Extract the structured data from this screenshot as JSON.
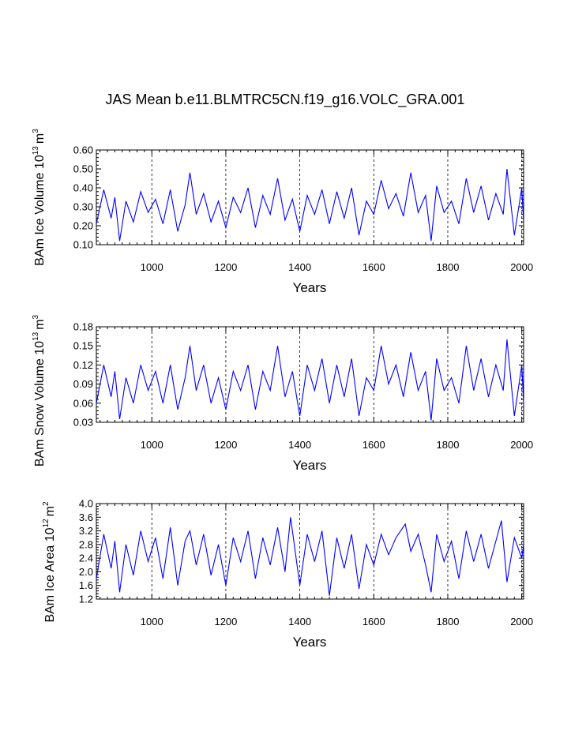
{
  "title": "JAS Mean b.e11.BLMTRC5CN.f19_g16.VOLC_GRA.001",
  "chart_data": [
    {
      "type": "line",
      "ylabel": "BAm Ice Volume 10",
      "ylabel_exp": "13",
      "ylabel_unit": "m",
      "ylabel_unit_exp": "3",
      "xlabel": "Years",
      "xlim": [
        850,
        2005
      ],
      "ylim": [
        0.1,
        0.6
      ],
      "xticks": [
        1000,
        1200,
        1400,
        1600,
        1800,
        2000
      ],
      "xtick_labels": [
        "1000",
        "1200",
        "1400",
        "1600",
        "1800",
        "2000"
      ],
      "yticks": [
        0.1,
        0.2,
        0.3,
        0.4,
        0.5,
        0.6
      ],
      "ytick_labels": [
        "0.10",
        "0.20",
        "0.30",
        "0.40",
        "0.50",
        "0.60"
      ],
      "grid": "dashed vertical at major x ticks",
      "series": [
        {
          "color": "#0000ff",
          "x": [
            850,
            870,
            890,
            900,
            913,
            930,
            950,
            970,
            990,
            1010,
            1030,
            1050,
            1070,
            1090,
            1103,
            1120,
            1140,
            1160,
            1180,
            1200,
            1220,
            1240,
            1260,
            1280,
            1300,
            1320,
            1340,
            1360,
            1380,
            1400,
            1420,
            1440,
            1460,
            1480,
            1500,
            1520,
            1540,
            1560,
            1580,
            1600,
            1620,
            1640,
            1660,
            1680,
            1700,
            1720,
            1740,
            1755,
            1770,
            1790,
            1810,
            1830,
            1850,
            1870,
            1890,
            1910,
            1930,
            1950,
            1960,
            1980,
            2000,
            2005
          ],
          "y": [
            0.21,
            0.39,
            0.24,
            0.35,
            0.12,
            0.33,
            0.22,
            0.38,
            0.27,
            0.34,
            0.21,
            0.39,
            0.17,
            0.31,
            0.48,
            0.26,
            0.37,
            0.22,
            0.33,
            0.19,
            0.35,
            0.27,
            0.4,
            0.19,
            0.36,
            0.26,
            0.45,
            0.23,
            0.34,
            0.17,
            0.36,
            0.26,
            0.39,
            0.21,
            0.38,
            0.24,
            0.4,
            0.15,
            0.33,
            0.26,
            0.44,
            0.29,
            0.37,
            0.25,
            0.48,
            0.27,
            0.36,
            0.12,
            0.41,
            0.27,
            0.33,
            0.21,
            0.45,
            0.27,
            0.41,
            0.23,
            0.37,
            0.26,
            0.5,
            0.15,
            0.4,
            0.22
          ]
        }
      ]
    },
    {
      "type": "line",
      "ylabel": "BAm Snow Volume 10",
      "ylabel_exp": "13",
      "ylabel_unit": "m",
      "ylabel_unit_exp": "3",
      "xlabel": "Years",
      "xlim": [
        850,
        2005
      ],
      "ylim": [
        0.03,
        0.18
      ],
      "xticks": [
        1000,
        1200,
        1400,
        1600,
        1800,
        2000
      ],
      "xtick_labels": [
        "1000",
        "1200",
        "1400",
        "1600",
        "1800",
        "2000"
      ],
      "yticks": [
        0.03,
        0.06,
        0.09,
        0.12,
        0.15,
        0.18
      ],
      "ytick_labels": [
        "0.03",
        "0.06",
        "0.09",
        "0.12",
        "0.15",
        "0.18"
      ],
      "grid": "dashed vertical at major x ticks",
      "series": [
        {
          "color": "#0000ff",
          "x": [
            850,
            870,
            890,
            900,
            913,
            930,
            950,
            970,
            990,
            1010,
            1030,
            1050,
            1070,
            1090,
            1103,
            1120,
            1140,
            1160,
            1180,
            1200,
            1220,
            1240,
            1260,
            1280,
            1300,
            1320,
            1340,
            1360,
            1380,
            1400,
            1420,
            1440,
            1460,
            1480,
            1500,
            1520,
            1540,
            1560,
            1580,
            1600,
            1620,
            1640,
            1660,
            1680,
            1700,
            1720,
            1740,
            1755,
            1770,
            1790,
            1810,
            1830,
            1850,
            1870,
            1890,
            1910,
            1930,
            1950,
            1960,
            1980,
            2000,
            2005
          ],
          "y": [
            0.06,
            0.12,
            0.07,
            0.11,
            0.035,
            0.1,
            0.06,
            0.12,
            0.08,
            0.11,
            0.06,
            0.12,
            0.05,
            0.1,
            0.15,
            0.08,
            0.12,
            0.06,
            0.1,
            0.05,
            0.11,
            0.08,
            0.12,
            0.05,
            0.11,
            0.08,
            0.15,
            0.07,
            0.11,
            0.04,
            0.12,
            0.08,
            0.13,
            0.06,
            0.12,
            0.07,
            0.13,
            0.04,
            0.1,
            0.08,
            0.15,
            0.09,
            0.12,
            0.07,
            0.14,
            0.08,
            0.11,
            0.033,
            0.13,
            0.08,
            0.1,
            0.06,
            0.15,
            0.08,
            0.13,
            0.07,
            0.12,
            0.08,
            0.16,
            0.04,
            0.12,
            0.06
          ]
        }
      ]
    },
    {
      "type": "line",
      "ylabel": "BAm Ice Area 10",
      "ylabel_exp": "12",
      "ylabel_unit": "m",
      "ylabel_unit_exp": "2",
      "xlabel": "Years",
      "xlim": [
        850,
        2005
      ],
      "ylim": [
        1.2,
        4.0
      ],
      "xticks": [
        1000,
        1200,
        1400,
        1600,
        1800,
        2000
      ],
      "xtick_labels": [
        "1000",
        "1200",
        "1400",
        "1600",
        "1800",
        "2000"
      ],
      "yticks": [
        1.2,
        1.6,
        2.0,
        2.4,
        2.8,
        3.2,
        3.6,
        4.0
      ],
      "ytick_labels": [
        "1.2",
        "1.6",
        "2.0",
        "2.4",
        "2.8",
        "3.2",
        "3.6",
        "4.0"
      ],
      "grid": "dashed vertical at major x ticks",
      "series": [
        {
          "color": "#0000ff",
          "x": [
            850,
            870,
            890,
            900,
            913,
            930,
            950,
            970,
            990,
            1010,
            1030,
            1050,
            1070,
            1090,
            1103,
            1120,
            1140,
            1160,
            1180,
            1200,
            1220,
            1240,
            1260,
            1280,
            1300,
            1320,
            1340,
            1360,
            1375,
            1400,
            1420,
            1440,
            1460,
            1480,
            1500,
            1520,
            1540,
            1560,
            1580,
            1600,
            1620,
            1640,
            1660,
            1685,
            1700,
            1720,
            1740,
            1755,
            1770,
            1790,
            1810,
            1830,
            1850,
            1870,
            1890,
            1910,
            1930,
            1945,
            1960,
            1980,
            2000,
            2005
          ],
          "y": [
            1.8,
            3.1,
            2.1,
            2.9,
            1.4,
            2.8,
            1.9,
            3.2,
            2.3,
            3.0,
            1.8,
            3.3,
            1.6,
            2.9,
            3.2,
            2.2,
            3.1,
            1.9,
            2.8,
            1.6,
            3.0,
            2.3,
            3.2,
            1.8,
            3.0,
            2.2,
            3.3,
            2.0,
            3.6,
            1.6,
            3.1,
            2.3,
            3.2,
            1.3,
            3.0,
            2.1,
            3.1,
            1.5,
            2.8,
            2.2,
            3.1,
            2.5,
            3.0,
            3.4,
            2.6,
            3.1,
            2.2,
            1.4,
            3.1,
            2.3,
            2.9,
            1.8,
            3.2,
            2.3,
            3.1,
            2.1,
            2.9,
            3.5,
            1.7,
            3.0,
            2.4,
            2.8
          ]
        }
      ]
    }
  ]
}
